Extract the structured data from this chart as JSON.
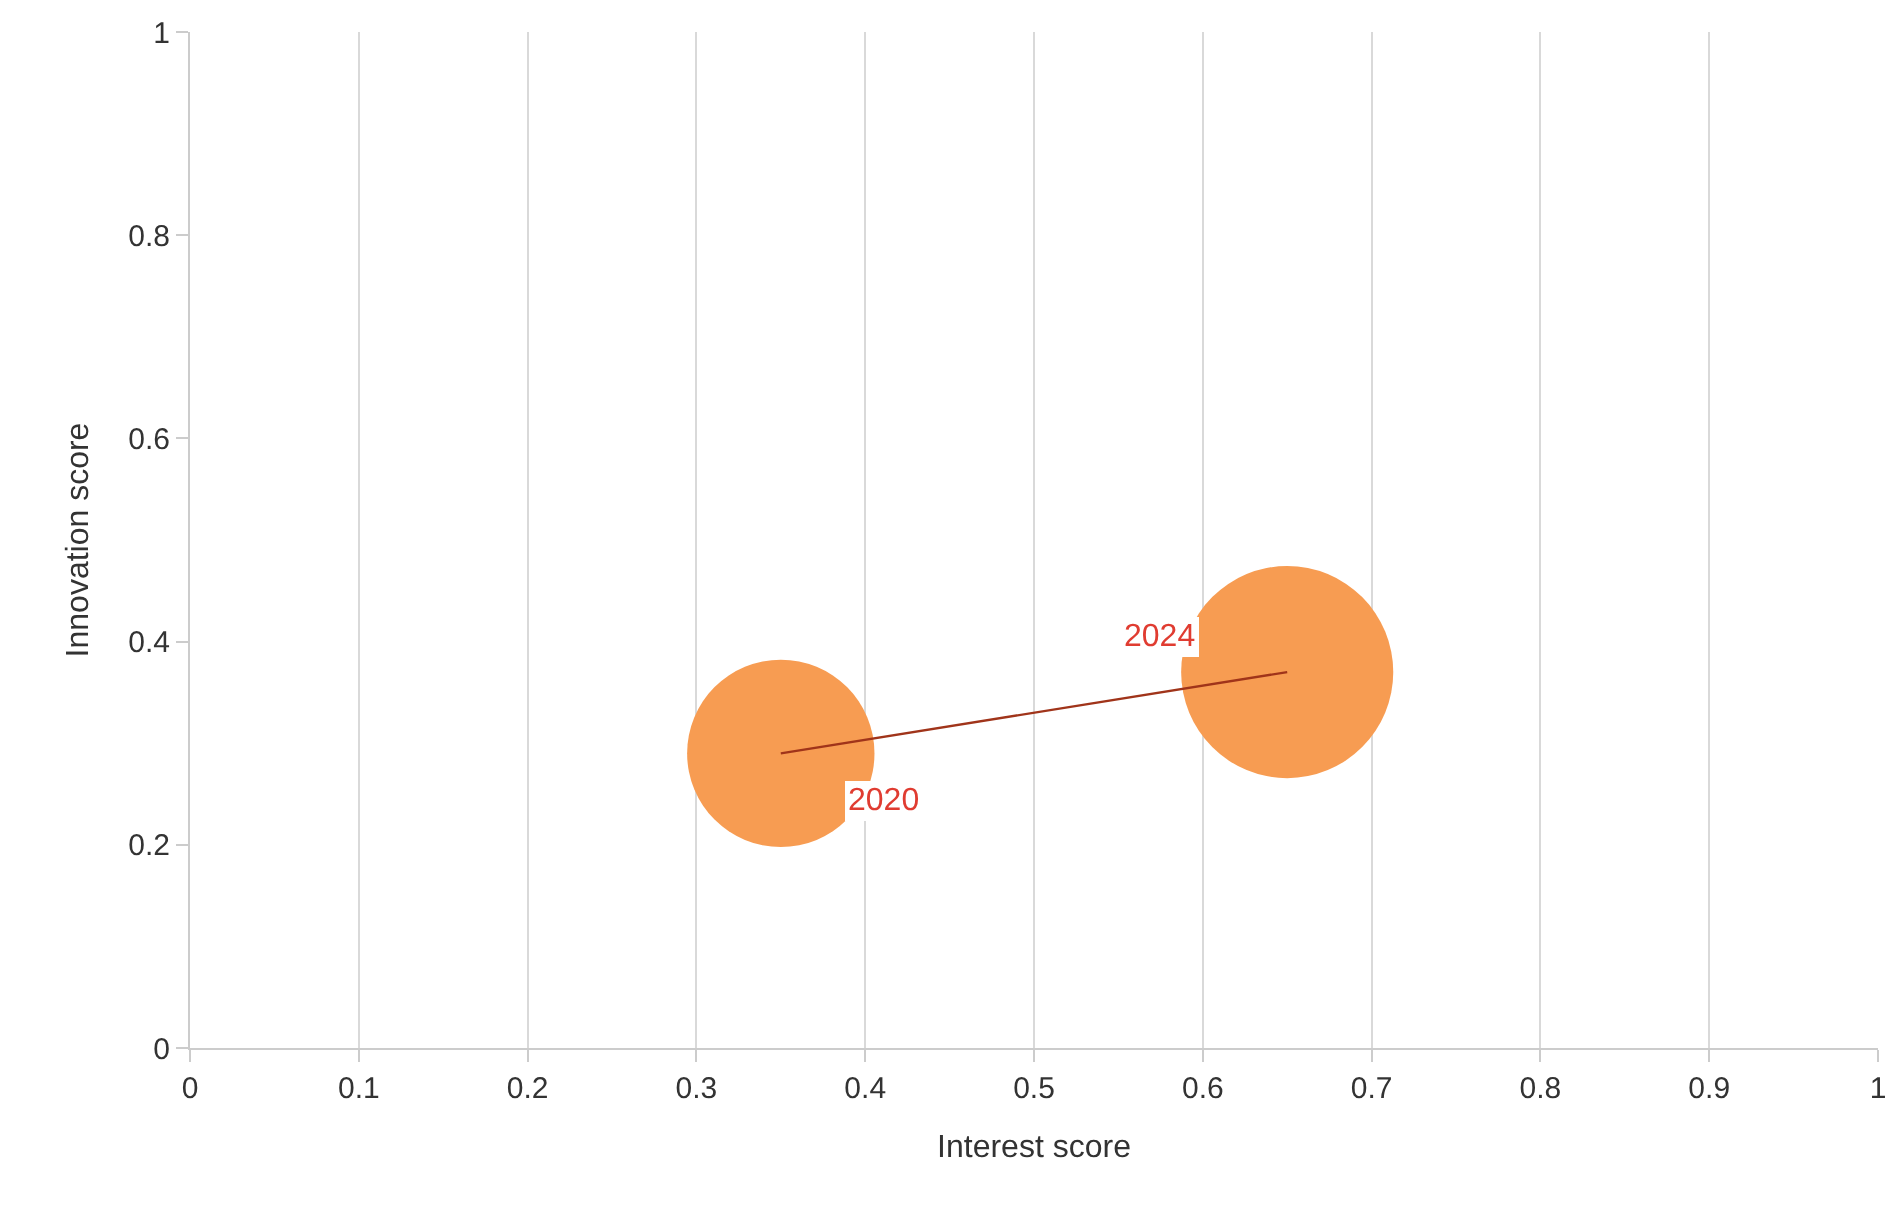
{
  "chart_data": {
    "type": "bubble",
    "xlabel": "Interest score",
    "ylabel": "Innovation score",
    "x": [
      0.35,
      0.65
    ],
    "values": [
      0.29,
      0.37
    ],
    "sizes": [
      0.78,
      1
    ],
    "color": "#f79c52",
    "series": [
      {
        "type": "line",
        "x": [
          0.35,
          0.65
        ],
        "values": [
          0.29,
          0.37
        ],
        "color": "#a0341a"
      }
    ],
    "annotations": [
      {
        "text": "2020",
        "x": 0.35,
        "y": 0.29
      },
      {
        "text": "2024",
        "x": 0.65,
        "y": 0.37
      }
    ],
    "xlim": [
      0,
      1
    ],
    "xticks": [
      0,
      0.1,
      0.2,
      0.3,
      0.4,
      0.5,
      0.6,
      0.7,
      0.8,
      0.9,
      1
    ],
    "ylim": [
      0,
      1
    ],
    "yticks": [
      0,
      0.2,
      0.4,
      0.6,
      0.8,
      1
    ],
    "grid": "x"
  }
}
